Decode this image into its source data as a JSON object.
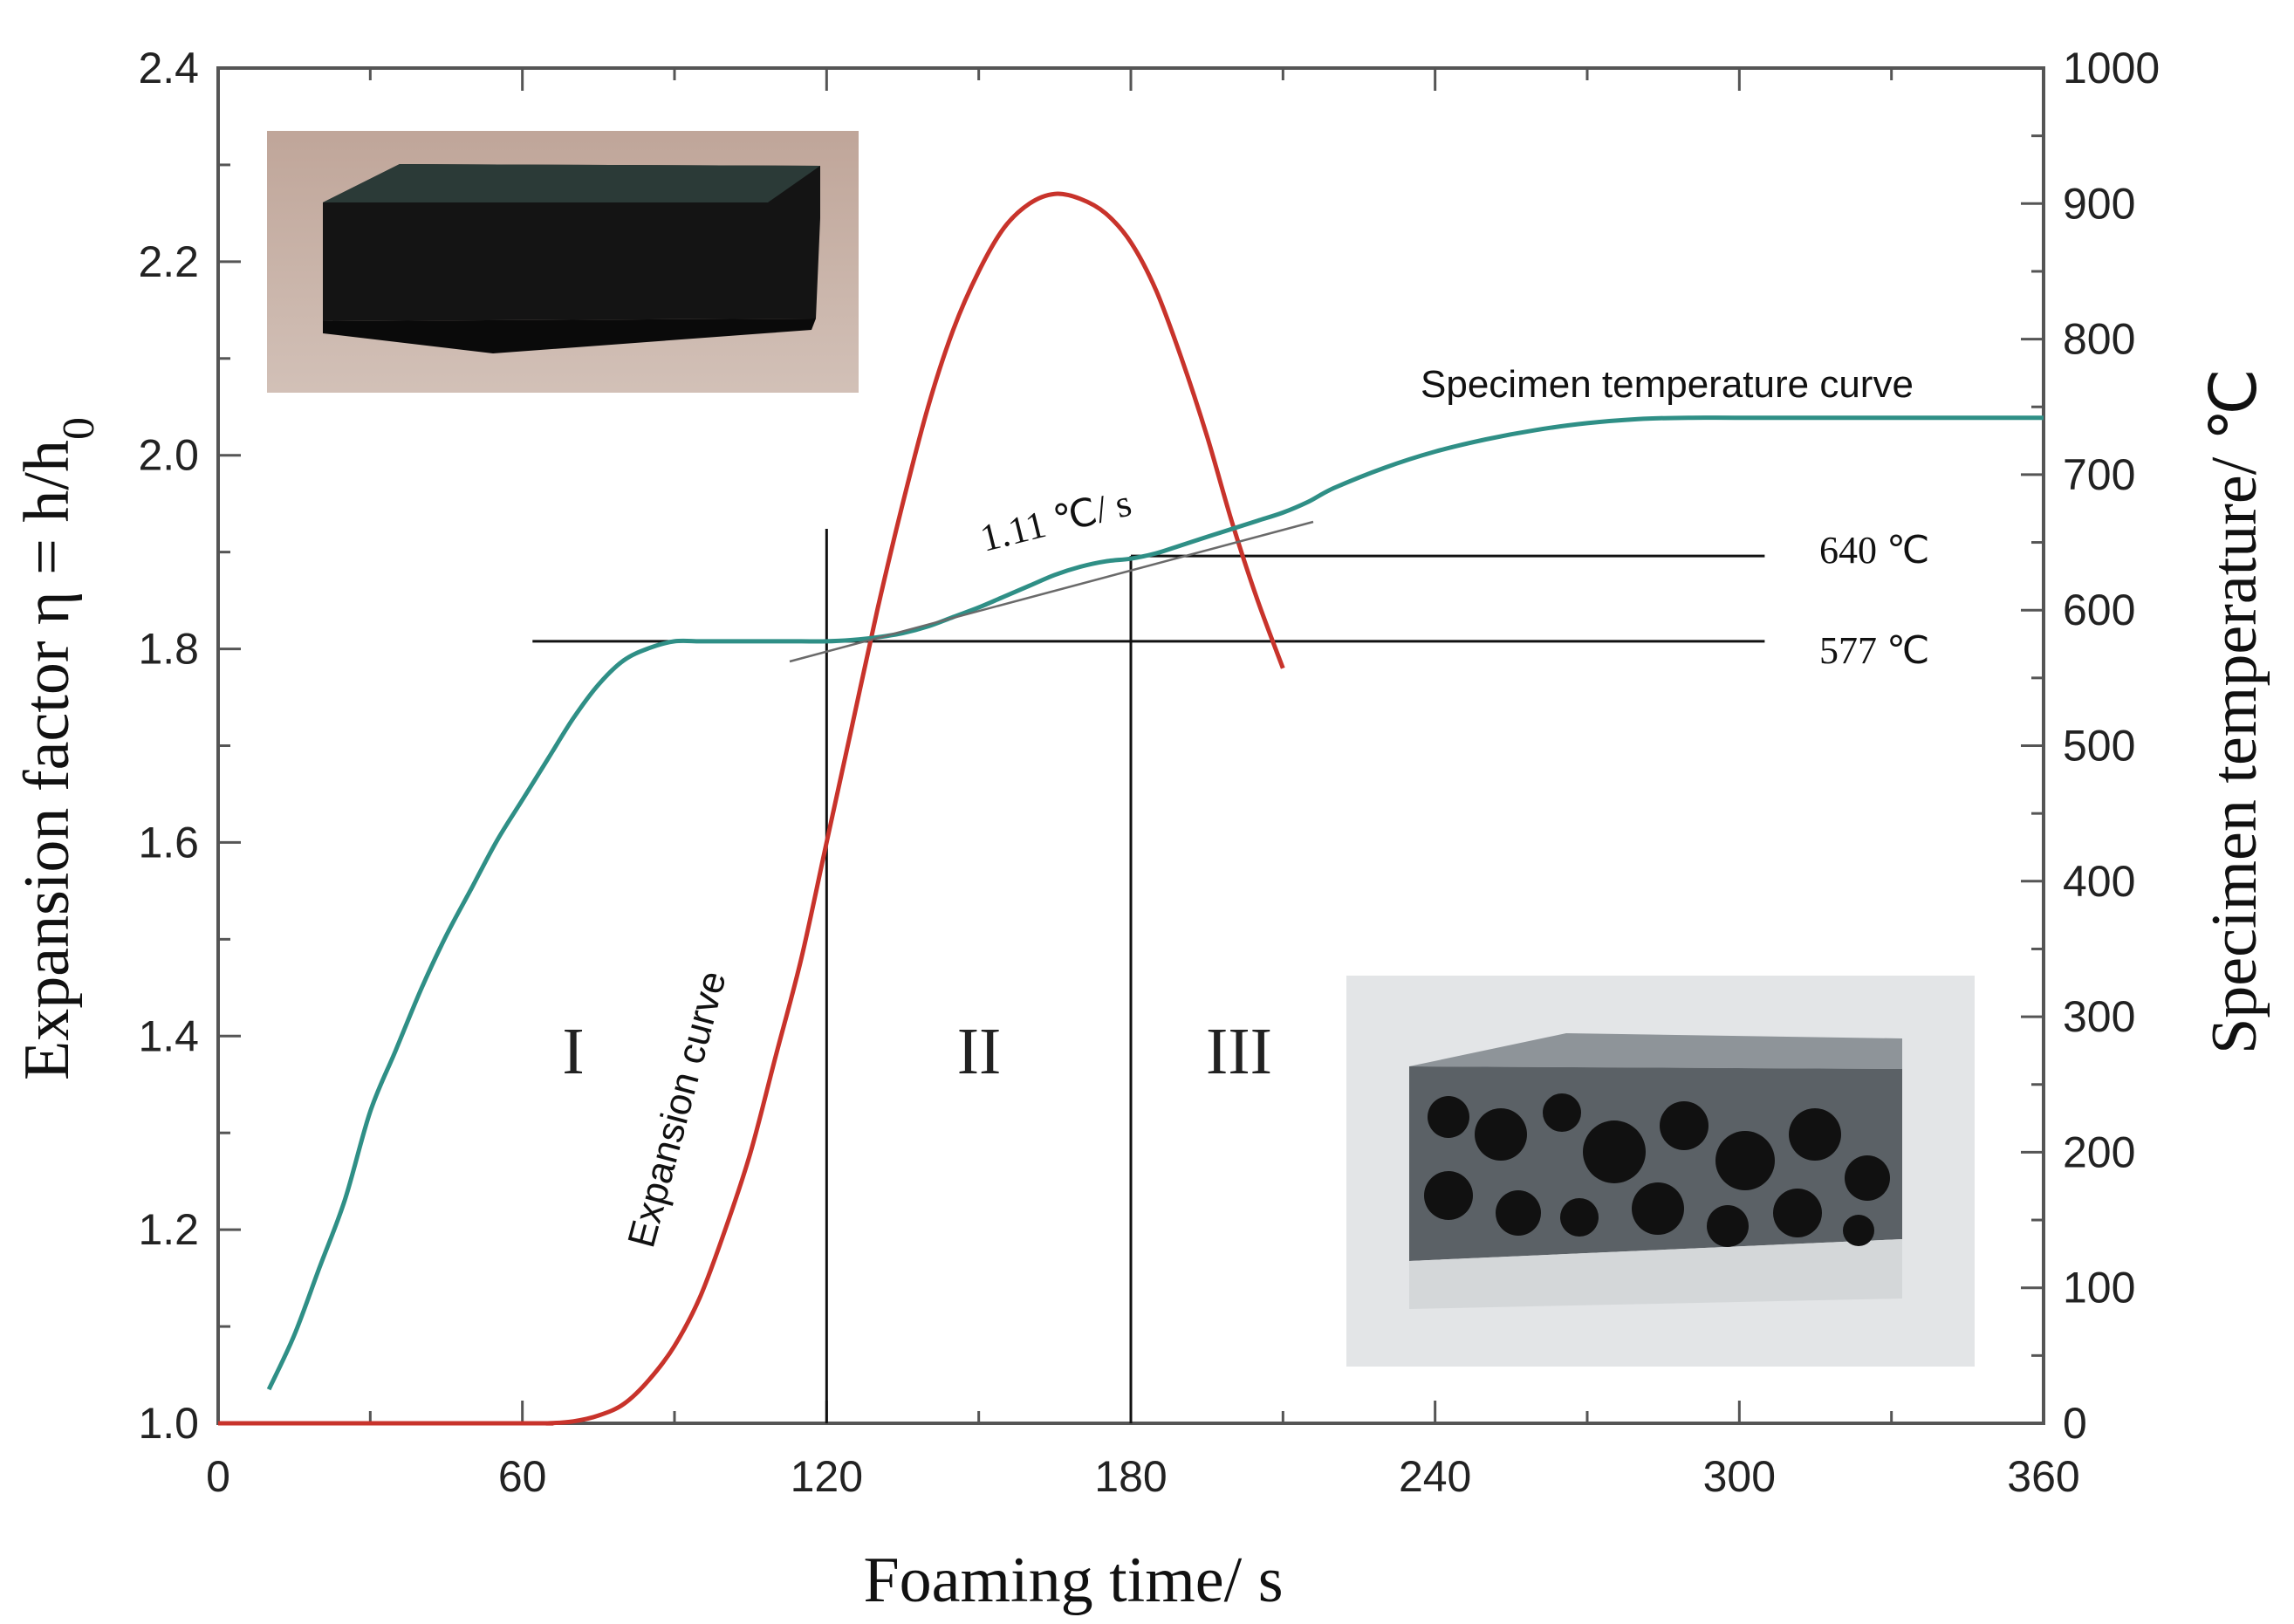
{
  "chart_data": {
    "type": "line",
    "title": "",
    "xlabel": "Foaming time/ s",
    "ylabel_left_main": "Expansion factor η = h/h",
    "ylabel_left_sub": "0",
    "ylabel_right": "Specimen temperature/ ℃",
    "xlim": [
      0,
      360
    ],
    "ylim_left": [
      1.0,
      2.4
    ],
    "ylim_right": [
      0,
      1000
    ],
    "x_ticks": [
      0,
      60,
      120,
      180,
      240,
      300,
      360
    ],
    "x_tick_labels": [
      "0",
      "60",
      "120",
      "180",
      "240",
      "300",
      "360"
    ],
    "y_left_ticks": [
      1.0,
      1.2,
      1.4,
      1.6,
      1.8,
      2.0,
      2.2,
      2.4
    ],
    "y_left_tick_labels": [
      "1.0",
      "1.2",
      "1.4",
      "1.6",
      "1.8",
      "2.0",
      "2.2",
      "2.4"
    ],
    "y_right_ticks": [
      0,
      100,
      200,
      300,
      400,
      500,
      600,
      700,
      800,
      900,
      1000
    ],
    "y_right_tick_labels": [
      "0",
      "100",
      "200",
      "300",
      "400",
      "500",
      "600",
      "700",
      "800",
      "900",
      "1000"
    ],
    "series": [
      {
        "name": "Expansion curve",
        "axis": "left",
        "color": "#c8332b",
        "x": [
          0,
          60,
          65,
          70,
          75,
          80,
          85,
          90,
          95,
          100,
          105,
          110,
          115,
          120,
          125,
          130,
          135,
          140,
          145,
          150,
          155,
          160,
          165,
          170,
          175,
          180,
          185,
          190,
          195,
          200,
          205,
          210
        ],
        "y": [
          1.0,
          1.0,
          1.0,
          1.002,
          1.008,
          1.02,
          1.045,
          1.08,
          1.13,
          1.2,
          1.28,
          1.38,
          1.48,
          1.6,
          1.72,
          1.84,
          1.95,
          2.05,
          2.13,
          2.19,
          2.235,
          2.26,
          2.27,
          2.265,
          2.25,
          2.22,
          2.17,
          2.1,
          2.02,
          1.93,
          1.85,
          1.78
        ]
      },
      {
        "name": "Specimen temperature curve",
        "axis": "right",
        "color": "#2f8f86",
        "x": [
          10,
          15,
          20,
          25,
          30,
          35,
          40,
          45,
          50,
          55,
          60,
          65,
          70,
          75,
          80,
          85,
          90,
          95,
          100,
          105,
          110,
          115,
          120,
          125,
          130,
          135,
          140,
          145,
          150,
          155,
          160,
          165,
          170,
          175,
          180,
          185,
          190,
          195,
          200,
          205,
          210,
          215,
          220,
          230,
          240,
          250,
          260,
          270,
          280,
          290,
          300,
          320,
          340,
          360
        ],
        "y": [
          25,
          65,
          115,
          165,
          230,
          275,
          320,
          360,
          395,
          430,
          460,
          490,
          520,
          545,
          563,
          572,
          577,
          577,
          577,
          577,
          577,
          577,
          577,
          578,
          580,
          583,
          588,
          595,
          602,
          610,
          618,
          626,
          632,
          636,
          638,
          642,
          648,
          654,
          660,
          666,
          672,
          680,
          690,
          705,
          717,
          726,
          733,
          738,
          741,
          742,
          742,
          742,
          742,
          742
        ]
      }
    ],
    "annotations": {
      "temp_640_label": "640 ℃",
      "temp_577_label": "577 ℃",
      "rate_label": "1.11 ℃/ s",
      "expansion_curve_label": "Expansion curve",
      "temp_curve_label": "Specimen temperature curve",
      "region_1": "I",
      "region_2": "II",
      "region_3": "III"
    },
    "reference_lines": {
      "h_577": {
        "value": 577,
        "x_from": 62,
        "x_to": 305
      },
      "h_640": {
        "value": 640,
        "x_from": 180,
        "x_to": 305
      },
      "v_120": {
        "x": 120,
        "value_from": 0,
        "value_to": 660
      },
      "v_180": {
        "x": 180,
        "value_from": 0,
        "value_to": 640
      }
    },
    "grid": false,
    "legend": "none"
  }
}
